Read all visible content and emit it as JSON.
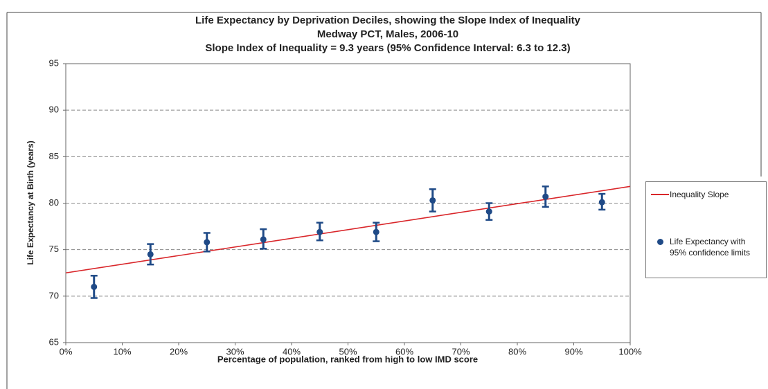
{
  "chart_data": {
    "type": "scatter",
    "title": "Life Expectancy by Deprivation Deciles, showing the Slope Index of Inequality",
    "subtitle": "Medway PCT, Males, 2006-10",
    "annotation": "Slope Index of Inequality = 9.3 years (95% Confidence Interval: 6.3 to 12.3)",
    "xlabel": "Percentage of population, ranked from high to low IMD score",
    "ylabel": "Life Expectancy at Birth (years)",
    "xlim": [
      0,
      100
    ],
    "ylim": [
      65,
      95
    ],
    "xticks": [
      {
        "value": 0,
        "label": "0%"
      },
      {
        "value": 10,
        "label": "10%"
      },
      {
        "value": 20,
        "label": "20%"
      },
      {
        "value": 30,
        "label": "30%"
      },
      {
        "value": 40,
        "label": "40%"
      },
      {
        "value": 50,
        "label": "50%"
      },
      {
        "value": 60,
        "label": "60%"
      },
      {
        "value": 70,
        "label": "70%"
      },
      {
        "value": 80,
        "label": "80%"
      },
      {
        "value": 90,
        "label": "90%"
      },
      {
        "value": 100,
        "label": "100%"
      }
    ],
    "yticks": [
      65,
      70,
      75,
      80,
      85,
      90,
      95
    ],
    "grid": true,
    "legend": "right",
    "series": [
      {
        "name": "Inequality Slope",
        "mark": "line",
        "color": "#d9262a",
        "x": [
          0,
          100
        ],
        "values": [
          72.5,
          81.8
        ]
      },
      {
        "name": "Life Expectancy with 95% confidence limits",
        "mark": "errorbar",
        "color": "#1f4a87",
        "x": [
          5,
          15,
          25,
          35,
          45,
          55,
          65,
          75,
          85,
          95
        ],
        "values": [
          71.0,
          74.5,
          75.8,
          76.1,
          76.9,
          76.9,
          80.3,
          79.1,
          80.7,
          80.1
        ],
        "lower": [
          69.8,
          73.4,
          74.8,
          75.1,
          76.0,
          75.9,
          79.1,
          78.2,
          79.6,
          79.3
        ],
        "upper": [
          72.2,
          75.6,
          76.8,
          77.2,
          77.9,
          77.9,
          81.5,
          80.0,
          81.8,
          81.0
        ]
      }
    ]
  }
}
